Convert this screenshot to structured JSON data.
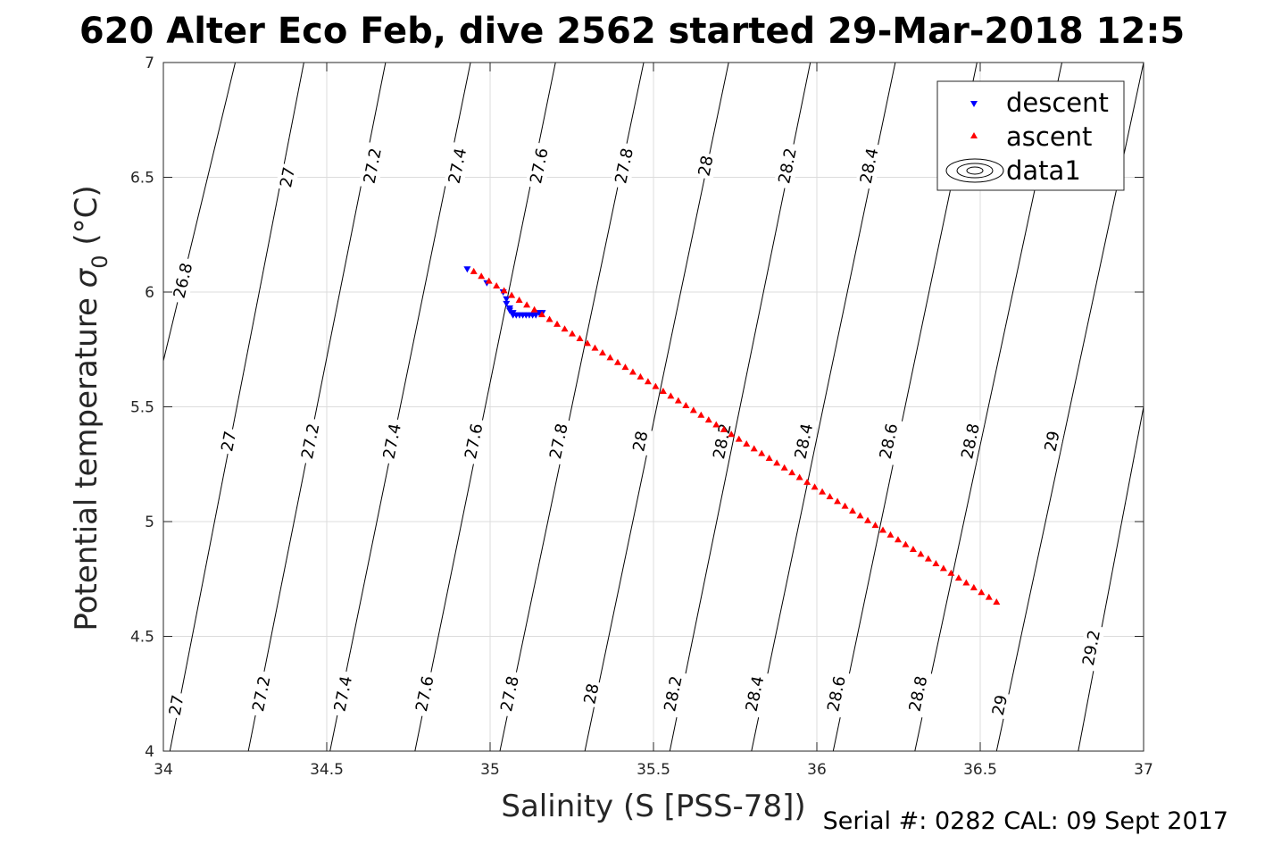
{
  "title": "620 Alter Eco Feb, dive 2562 started 29-Mar-2018 12:5",
  "footer": "Serial #: 0282  CAL: 09 Sept 2017",
  "chart_data": {
    "type": "scatter",
    "xlabel": "Salinity (S [PSS-78])",
    "ylabel_main": "Potential temperature ",
    "ylabel_symbol": "σ",
    "ylabel_subscript": "0",
    "ylabel_unit": " (°C)",
    "xlim": [
      34,
      37
    ],
    "ylim": [
      4,
      7
    ],
    "xticks": [
      "34",
      "34.5",
      "35",
      "35.5",
      "36",
      "36.5",
      "37"
    ],
    "yticks": [
      "4",
      "4.5",
      "5",
      "5.5",
      "6",
      "6.5",
      "7"
    ],
    "grid": true,
    "legend_position": "top-right",
    "legend": [
      "descent",
      "ascent",
      "data1"
    ],
    "colors": {
      "descent": "#0000ff",
      "ascent": "#ff0000",
      "contour": "#000000",
      "grid": "#dcdcdc"
    },
    "series": [
      {
        "name": "descent",
        "marker": "triangle-down",
        "points": [
          [
            34.93,
            6.1
          ],
          [
            34.99,
            6.04
          ],
          [
            35.04,
            6.0
          ],
          [
            35.05,
            5.97
          ],
          [
            35.05,
            5.95
          ],
          [
            35.06,
            5.93
          ],
          [
            35.06,
            5.92
          ],
          [
            35.07,
            5.91
          ],
          [
            35.07,
            5.9
          ],
          [
            35.08,
            5.9
          ],
          [
            35.09,
            5.9
          ],
          [
            35.1,
            5.9
          ],
          [
            35.11,
            5.9
          ],
          [
            35.12,
            5.9
          ],
          [
            35.13,
            5.9
          ],
          [
            35.14,
            5.9
          ],
          [
            35.15,
            5.91
          ],
          [
            35.16,
            5.91
          ]
        ]
      },
      {
        "name": "ascent",
        "marker": "triangle-up",
        "start": [
          34.95,
          6.09
        ],
        "end": [
          36.55,
          4.65
        ],
        "count": 70
      }
    ],
    "contours": [
      {
        "level": "26.8",
        "segments": [
          [
            34.0,
            5.7,
            34.22,
            7.0
          ]
        ],
        "labels": [
          [
            34.06,
            6.05
          ]
        ]
      },
      {
        "level": "27",
        "segments": [
          [
            34.02,
            4.0,
            34.43,
            7.0
          ]
        ],
        "labels": [
          [
            34.04,
            4.2
          ],
          [
            34.2,
            5.35
          ],
          [
            34.38,
            6.5
          ]
        ]
      },
      {
        "level": "27.2",
        "segments": [
          [
            34.26,
            4.0,
            34.68,
            7.0
          ]
        ],
        "labels": [
          [
            34.3,
            4.25
          ],
          [
            34.45,
            5.35
          ],
          [
            34.64,
            6.55
          ]
        ]
      },
      {
        "level": "27.4",
        "segments": [
          [
            34.51,
            4.0,
            34.94,
            7.0
          ]
        ],
        "labels": [
          [
            34.55,
            4.25
          ],
          [
            34.7,
            5.35
          ],
          [
            34.9,
            6.55
          ]
        ]
      },
      {
        "level": "27.6",
        "segments": [
          [
            34.77,
            4.0,
            35.2,
            7.0
          ]
        ],
        "labels": [
          [
            34.8,
            4.25
          ],
          [
            34.95,
            5.35
          ],
          [
            35.15,
            6.55
          ]
        ]
      },
      {
        "level": "27.8",
        "segments": [
          [
            35.03,
            4.0,
            35.47,
            7.0
          ]
        ],
        "labels": [
          [
            35.06,
            4.25
          ],
          [
            35.21,
            5.35
          ],
          [
            35.41,
            6.55
          ]
        ]
      },
      {
        "level": "28",
        "segments": [
          [
            35.29,
            4.0,
            35.73,
            7.0
          ]
        ],
        "labels": [
          [
            35.31,
            4.25
          ],
          [
            35.46,
            5.35
          ],
          [
            35.66,
            6.55
          ]
        ]
      },
      {
        "level": "28.2",
        "segments": [
          [
            35.55,
            4.0,
            35.98,
            7.0
          ]
        ],
        "labels": [
          [
            35.56,
            4.25
          ],
          [
            35.71,
            5.35
          ],
          [
            35.91,
            6.55
          ]
        ]
      },
      {
        "level": "28.4",
        "segments": [
          [
            35.8,
            4.0,
            36.24,
            7.0
          ]
        ],
        "labels": [
          [
            35.81,
            4.25
          ],
          [
            35.96,
            5.35
          ],
          [
            36.16,
            6.55
          ]
        ]
      },
      {
        "level": "28.6",
        "segments": [
          [
            36.05,
            4.0,
            36.49,
            7.0
          ]
        ],
        "labels": [
          [
            36.06,
            4.25
          ],
          [
            36.22,
            5.35
          ]
        ]
      },
      {
        "level": "28.8",
        "segments": [
          [
            36.3,
            4.0,
            36.75,
            7.0
          ]
        ],
        "labels": [
          [
            36.31,
            4.25
          ],
          [
            36.47,
            5.35
          ]
        ]
      },
      {
        "level": "29",
        "segments": [
          [
            36.55,
            4.0,
            37.0,
            7.0
          ]
        ],
        "labels": [
          [
            36.56,
            4.2
          ],
          [
            36.72,
            5.35
          ]
        ]
      },
      {
        "level": "29.2",
        "segments": [
          [
            36.8,
            4.0,
            37.0,
            5.5
          ]
        ],
        "labels": [
          [
            36.84,
            4.45
          ]
        ]
      }
    ]
  }
}
